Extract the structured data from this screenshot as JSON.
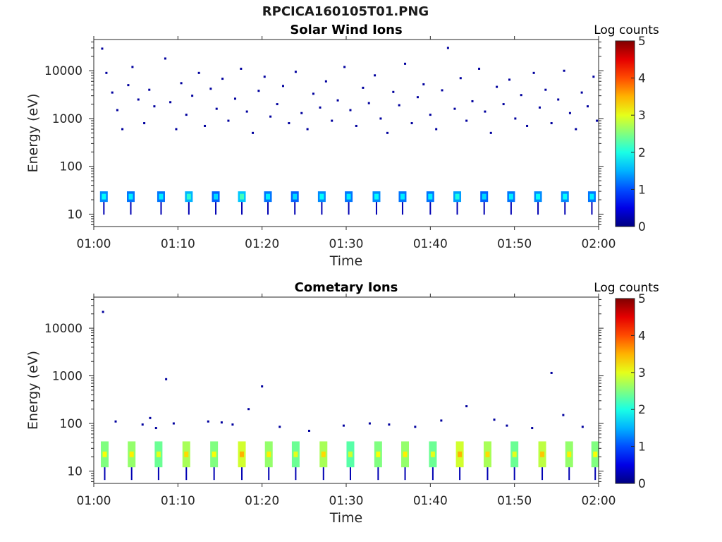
{
  "figure": {
    "title": "RPCICA160105T01.PNG"
  },
  "chart_data": [
    {
      "type": "heatmap",
      "title": "Solar Wind Ions",
      "xlabel": "Time",
      "ylabel": "Energy (eV)",
      "x_range": [
        "01:00",
        "02:00"
      ],
      "x_ticks": [
        "01:00",
        "01:10",
        "01:20",
        "01:30",
        "01:40",
        "01:50",
        "02:00"
      ],
      "y_scale": "log",
      "y_range": [
        5.5,
        45000
      ],
      "y_ticks": [
        {
          "value": 10,
          "label": "10"
        },
        {
          "value": 100,
          "label": "100"
        },
        {
          "value": 1000,
          "label": "1000"
        },
        {
          "value": 10000,
          "label": "10000"
        }
      ],
      "colorbar": {
        "label": "Log counts",
        "min": 0,
        "max": 5,
        "ticks": [
          "0",
          "1",
          "2",
          "3",
          "4",
          "5"
        ]
      },
      "bursts": [
        {
          "t": 1.2,
          "e_low": 18,
          "e_high": 30,
          "level": 1.3
        },
        {
          "t": 4.4,
          "e_low": 18,
          "e_high": 30,
          "level": 1.2
        },
        {
          "t": 8.0,
          "e_low": 18,
          "e_high": 30,
          "level": 1.2
        },
        {
          "t": 11.3,
          "e_low": 18,
          "e_high": 30,
          "level": 1.5
        },
        {
          "t": 14.5,
          "e_low": 18,
          "e_high": 30,
          "level": 1.1
        },
        {
          "t": 17.6,
          "e_low": 18,
          "e_high": 30,
          "level": 1.6
        },
        {
          "t": 20.7,
          "e_low": 18,
          "e_high": 30,
          "level": 1.2
        },
        {
          "t": 23.9,
          "e_low": 18,
          "e_high": 30,
          "level": 1.1
        },
        {
          "t": 27.1,
          "e_low": 18,
          "e_high": 30,
          "level": 1.3
        },
        {
          "t": 30.3,
          "e_low": 18,
          "e_high": 30,
          "level": 1.2
        },
        {
          "t": 33.6,
          "e_low": 18,
          "e_high": 30,
          "level": 1.3
        },
        {
          "t": 36.7,
          "e_low": 18,
          "e_high": 30,
          "level": 1.2
        },
        {
          "t": 40.0,
          "e_low": 18,
          "e_high": 30,
          "level": 1.2
        },
        {
          "t": 43.2,
          "e_low": 18,
          "e_high": 30,
          "level": 1.4
        },
        {
          "t": 46.4,
          "e_low": 18,
          "e_high": 30,
          "level": 1.1
        },
        {
          "t": 49.6,
          "e_low": 18,
          "e_high": 30,
          "level": 1.2
        },
        {
          "t": 52.8,
          "e_low": 18,
          "e_high": 30,
          "level": 1.3
        },
        {
          "t": 56.0,
          "e_low": 18,
          "e_high": 30,
          "level": 1.3
        },
        {
          "t": 59.2,
          "e_low": 18,
          "e_high": 30,
          "level": 1.2
        }
      ],
      "sparse_points": [
        {
          "t": 1.0,
          "e": 29000
        },
        {
          "t": 1.5,
          "e": 9000
        },
        {
          "t": 2.2,
          "e": 3500
        },
        {
          "t": 2.8,
          "e": 1500
        },
        {
          "t": 3.4,
          "e": 600
        },
        {
          "t": 4.1,
          "e": 5000
        },
        {
          "t": 4.6,
          "e": 12000
        },
        {
          "t": 5.3,
          "e": 2500
        },
        {
          "t": 6.0,
          "e": 800
        },
        {
          "t": 6.6,
          "e": 4000
        },
        {
          "t": 7.2,
          "e": 1800
        },
        {
          "t": 8.5,
          "e": 18000
        },
        {
          "t": 9.1,
          "e": 2200
        },
        {
          "t": 9.8,
          "e": 600
        },
        {
          "t": 10.4,
          "e": 5500
        },
        {
          "t": 11.0,
          "e": 1200
        },
        {
          "t": 11.7,
          "e": 3000
        },
        {
          "t": 12.5,
          "e": 9000
        },
        {
          "t": 13.2,
          "e": 700
        },
        {
          "t": 13.9,
          "e": 4200
        },
        {
          "t": 14.6,
          "e": 1600
        },
        {
          "t": 15.3,
          "e": 6800
        },
        {
          "t": 16.0,
          "e": 900
        },
        {
          "t": 16.8,
          "e": 2600
        },
        {
          "t": 17.5,
          "e": 11000
        },
        {
          "t": 18.2,
          "e": 1400
        },
        {
          "t": 18.9,
          "e": 500
        },
        {
          "t": 19.6,
          "e": 3800
        },
        {
          "t": 20.3,
          "e": 7500
        },
        {
          "t": 21.0,
          "e": 1100
        },
        {
          "t": 21.8,
          "e": 2000
        },
        {
          "t": 22.5,
          "e": 4800
        },
        {
          "t": 23.2,
          "e": 800
        },
        {
          "t": 24.0,
          "e": 9500
        },
        {
          "t": 24.7,
          "e": 1300
        },
        {
          "t": 25.4,
          "e": 600
        },
        {
          "t": 26.1,
          "e": 3300
        },
        {
          "t": 26.9,
          "e": 1700
        },
        {
          "t": 27.6,
          "e": 6000
        },
        {
          "t": 28.3,
          "e": 900
        },
        {
          "t": 29.0,
          "e": 2400
        },
        {
          "t": 29.8,
          "e": 12000
        },
        {
          "t": 30.5,
          "e": 1500
        },
        {
          "t": 31.2,
          "e": 700
        },
        {
          "t": 32.0,
          "e": 4400
        },
        {
          "t": 32.7,
          "e": 2100
        },
        {
          "t": 33.4,
          "e": 8000
        },
        {
          "t": 34.1,
          "e": 1000
        },
        {
          "t": 34.9,
          "e": 500
        },
        {
          "t": 35.6,
          "e": 3600
        },
        {
          "t": 36.3,
          "e": 1900
        },
        {
          "t": 37.0,
          "e": 14000
        },
        {
          "t": 37.8,
          "e": 800
        },
        {
          "t": 38.5,
          "e": 2800
        },
        {
          "t": 39.2,
          "e": 5200
        },
        {
          "t": 40.0,
          "e": 1200
        },
        {
          "t": 40.7,
          "e": 600
        },
        {
          "t": 41.4,
          "e": 3900
        },
        {
          "t": 42.1,
          "e": 30000
        },
        {
          "t": 42.9,
          "e": 1600
        },
        {
          "t": 43.6,
          "e": 7000
        },
        {
          "t": 44.3,
          "e": 900
        },
        {
          "t": 45.0,
          "e": 2300
        },
        {
          "t": 45.8,
          "e": 11000
        },
        {
          "t": 46.5,
          "e": 1400
        },
        {
          "t": 47.2,
          "e": 500
        },
        {
          "t": 47.9,
          "e": 4600
        },
        {
          "t": 48.7,
          "e": 2000
        },
        {
          "t": 49.4,
          "e": 6500
        },
        {
          "t": 50.1,
          "e": 1000
        },
        {
          "t": 50.8,
          "e": 3100
        },
        {
          "t": 51.5,
          "e": 700
        },
        {
          "t": 52.3,
          "e": 9000
        },
        {
          "t": 53.0,
          "e": 1700
        },
        {
          "t": 53.7,
          "e": 4000
        },
        {
          "t": 54.4,
          "e": 800
        },
        {
          "t": 55.2,
          "e": 2500
        },
        {
          "t": 55.9,
          "e": 10000
        },
        {
          "t": 56.6,
          "e": 1300
        },
        {
          "t": 57.3,
          "e": 600
        },
        {
          "t": 58.0,
          "e": 3500
        },
        {
          "t": 58.7,
          "e": 1800
        },
        {
          "t": 59.4,
          "e": 7500
        },
        {
          "t": 59.8,
          "e": 900
        }
      ]
    },
    {
      "type": "heatmap",
      "title": "Cometary Ions",
      "xlabel": "Time",
      "ylabel": "Energy (eV)",
      "x_range": [
        "01:00",
        "02:00"
      ],
      "x_ticks": [
        "01:00",
        "01:10",
        "01:20",
        "01:30",
        "01:40",
        "01:50",
        "02:00"
      ],
      "y_scale": "log",
      "y_range": [
        5.5,
        45000
      ],
      "y_ticks": [
        {
          "value": 10,
          "label": "10"
        },
        {
          "value": 100,
          "label": "100"
        },
        {
          "value": 1000,
          "label": "1000"
        },
        {
          "value": 10000,
          "label": "10000"
        }
      ],
      "colorbar": {
        "label": "Log counts",
        "min": 0,
        "max": 5,
        "ticks": [
          "0",
          "1",
          "2",
          "3",
          "4",
          "5"
        ]
      },
      "bursts": [
        {
          "t": 1.3,
          "e_low": 12,
          "e_high": 42,
          "level": 2.5
        },
        {
          "t": 4.5,
          "e_low": 12,
          "e_high": 42,
          "level": 2.6
        },
        {
          "t": 7.7,
          "e_low": 12,
          "e_high": 42,
          "level": 2.4
        },
        {
          "t": 11.0,
          "e_low": 12,
          "e_high": 42,
          "level": 2.7
        },
        {
          "t": 14.3,
          "e_low": 12,
          "e_high": 42,
          "level": 2.5
        },
        {
          "t": 17.6,
          "e_low": 12,
          "e_high": 42,
          "level": 2.9
        },
        {
          "t": 20.8,
          "e_low": 12,
          "e_high": 42,
          "level": 2.6
        },
        {
          "t": 24.0,
          "e_low": 12,
          "e_high": 42,
          "level": 2.4
        },
        {
          "t": 27.3,
          "e_low": 12,
          "e_high": 42,
          "level": 2.7
        },
        {
          "t": 30.5,
          "e_low": 12,
          "e_high": 42,
          "level": 2.3
        },
        {
          "t": 33.8,
          "e_low": 12,
          "e_high": 42,
          "level": 2.5
        },
        {
          "t": 37.0,
          "e_low": 12,
          "e_high": 42,
          "level": 2.6
        },
        {
          "t": 40.3,
          "e_low": 12,
          "e_high": 42,
          "level": 2.4
        },
        {
          "t": 43.5,
          "e_low": 12,
          "e_high": 42,
          "level": 2.9
        },
        {
          "t": 46.8,
          "e_low": 12,
          "e_high": 42,
          "level": 2.7
        },
        {
          "t": 50.0,
          "e_low": 12,
          "e_high": 42,
          "level": 2.4
        },
        {
          "t": 53.3,
          "e_low": 12,
          "e_high": 42,
          "level": 2.8
        },
        {
          "t": 56.5,
          "e_low": 12,
          "e_high": 42,
          "level": 2.6
        },
        {
          "t": 59.6,
          "e_low": 12,
          "e_high": 42,
          "level": 2.5
        }
      ],
      "sparse_points": [
        {
          "t": 1.1,
          "e": 22000
        },
        {
          "t": 2.6,
          "e": 110
        },
        {
          "t": 5.8,
          "e": 95
        },
        {
          "t": 6.7,
          "e": 130
        },
        {
          "t": 7.4,
          "e": 80
        },
        {
          "t": 8.6,
          "e": 850
        },
        {
          "t": 9.5,
          "e": 100
        },
        {
          "t": 13.6,
          "e": 110
        },
        {
          "t": 15.2,
          "e": 105
        },
        {
          "t": 16.5,
          "e": 95
        },
        {
          "t": 18.4,
          "e": 200
        },
        {
          "t": 20.0,
          "e": 600
        },
        {
          "t": 22.1,
          "e": 85
        },
        {
          "t": 25.6,
          "e": 70
        },
        {
          "t": 29.7,
          "e": 90
        },
        {
          "t": 32.8,
          "e": 100
        },
        {
          "t": 35.1,
          "e": 95
        },
        {
          "t": 38.2,
          "e": 85
        },
        {
          "t": 41.3,
          "e": 115
        },
        {
          "t": 44.3,
          "e": 230
        },
        {
          "t": 47.6,
          "e": 120
        },
        {
          "t": 49.1,
          "e": 90
        },
        {
          "t": 52.1,
          "e": 80
        },
        {
          "t": 54.4,
          "e": 1150
        },
        {
          "t": 55.8,
          "e": 150
        },
        {
          "t": 58.1,
          "e": 85
        }
      ]
    }
  ]
}
